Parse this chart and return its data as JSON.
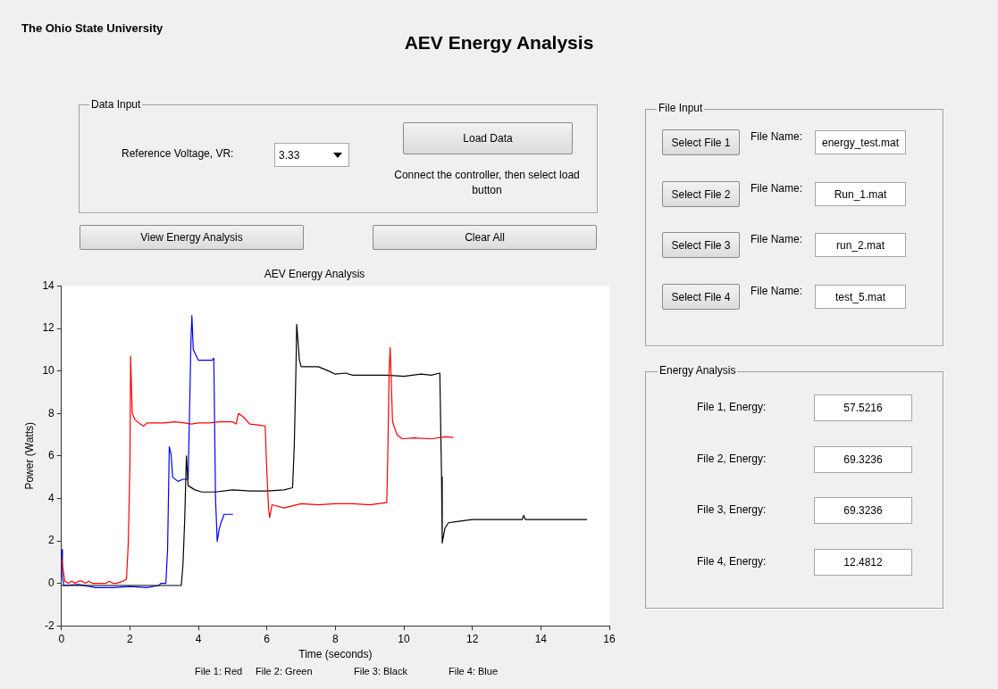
{
  "chart_data": [
    {
      "type": "line",
      "title": "AEV Energy Analysis",
      "xlabel": "Time (seconds)",
      "ylabel": "Power (Watts)",
      "xlim": [
        0,
        16
      ],
      "xticks": [
        0,
        2,
        4,
        6,
        8,
        10,
        12,
        14,
        16
      ],
      "ylim": [
        -2,
        14
      ],
      "yticks": [
        -2,
        0,
        2,
        4,
        6,
        8,
        10,
        12,
        14
      ],
      "series": [
        {
          "color": "#ff0000",
          "x": [
            0,
            0.1,
            0.2,
            0.3,
            0.4,
            0.5,
            0.6,
            0.7,
            0.8,
            0.9,
            1.0,
            1.3,
            1.4,
            1.5,
            1.6,
            1.7,
            1.8,
            1.9,
            1.95,
            2.0,
            2.02,
            2.05,
            2.07,
            2.15,
            2.3,
            2.4,
            2.5,
            2.7,
            3.0,
            3.3,
            3.6,
            3.8,
            4.0,
            4.3,
            4.6,
            5.0,
            5.1,
            5.17,
            5.3,
            5.5,
            5.8,
            5.95,
            6.0,
            6.05,
            6.08,
            6.15,
            6.5,
            7.0,
            7.5,
            8.0,
            8.5,
            9.0,
            9.5,
            9.53,
            9.57,
            9.6,
            9.67,
            9.8,
            9.95,
            10.3,
            10.8,
            11.2,
            11.44
          ],
          "values": [
            1.2,
            0.1,
            0,
            0.1,
            0,
            0.1,
            0.1,
            0,
            0.1,
            0,
            0,
            0,
            0.1,
            0,
            0,
            0.05,
            0.1,
            0.2,
            1.8,
            5.5,
            10.7,
            9,
            8,
            7.7,
            7.5,
            7.4,
            7.55,
            7.55,
            7.55,
            7.6,
            7.55,
            7.5,
            7.55,
            7.55,
            7.6,
            7.6,
            7.5,
            8.0,
            7.85,
            7.5,
            7.45,
            7.4,
            5.2,
            3.5,
            3.1,
            3.7,
            3.55,
            3.75,
            3.7,
            3.75,
            3.75,
            3.7,
            3.8,
            6,
            10,
            11.1,
            7.6,
            7.0,
            6.8,
            6.85,
            6.8,
            6.9,
            6.87
          ]
        },
        {
          "color": "#000000",
          "x": [
            0,
            3.5,
            3.55,
            3.6,
            3.65,
            3.7,
            3.9,
            4.1,
            4.5,
            5.0,
            5.5,
            6.0,
            6.5,
            6.75,
            6.8,
            6.85,
            6.87,
            6.95,
            7.0,
            7.5,
            7.8,
            8.0,
            8.3,
            8.5,
            9.0,
            9.5,
            10.0,
            10.5,
            10.8,
            11.05,
            11.1,
            11.12,
            11.2,
            11.3,
            11.5,
            12.0,
            13.0,
            13.45,
            13.5,
            13.55,
            14.0,
            15.35
          ],
          "values": [
            -0.1,
            -0.1,
            0.9,
            3.0,
            6.0,
            4.6,
            4.4,
            4.3,
            4.3,
            4.4,
            4.35,
            4.35,
            4.4,
            4.5,
            6.5,
            10.2,
            12.2,
            10.5,
            10.2,
            10.2,
            10.0,
            9.85,
            9.9,
            9.8,
            9.8,
            9.8,
            9.75,
            9.85,
            9.8,
            9.9,
            5.0,
            1.9,
            2.6,
            2.85,
            2.9,
            3.0,
            3.0,
            3.0,
            3.2,
            3.0,
            3.0,
            3.0
          ]
        },
        {
          "color": "#0000ff",
          "x": [
            0.02,
            0.03,
            0.07,
            0.1,
            0.5,
            1.0,
            1.5,
            2.0,
            2.5,
            2.85,
            2.9,
            3.05,
            3.1,
            3.15,
            3.2,
            3.25,
            3.4,
            3.55,
            3.7,
            3.75,
            3.78,
            3.81,
            3.85,
            4.0,
            4.2,
            4.4,
            4.45,
            4.5,
            4.55,
            4.6,
            4.65,
            4.75,
            5.01
          ],
          "values": [
            1.6,
            0.3,
            -0.1,
            -0.1,
            -0.05,
            -0.2,
            -0.2,
            -0.15,
            -0.2,
            -0.1,
            0,
            0,
            1.6,
            6.43,
            6.1,
            5.0,
            4.8,
            4.9,
            4.9,
            8.7,
            11.3,
            12.6,
            11.0,
            10.5,
            10.5,
            10.5,
            10.6,
            4.0,
            1.97,
            2.5,
            2.8,
            3.25,
            3.25
          ]
        }
      ],
      "annotations": [
        "File 1: Red",
        "File 2: Green",
        "File 3: Black",
        "File 4: Blue"
      ]
    },
    {
      "type": "other",
      "title": "AEV Energy Analysis",
      "annotations": [
        "The Ohio State University",
        "Data Input",
        "Reference Voltage, VR:",
        "3.33",
        "Load Data",
        "Connect the controller, then select load button",
        "View Energy Analysis",
        "Clear All",
        "File Input",
        "Select File 1",
        "File Name:",
        "energy_test.mat",
        "Select File 2",
        "File Name:",
        "Run_1.mat",
        "Select File 3",
        "File Name:",
        "run_2.mat",
        "Select File 4",
        "File Name:",
        "test_5.mat",
        "Energy Analysis",
        "File 1, Energy:",
        "57.5216",
        "File 2, Energy:",
        "69.3236",
        "File 3, Energy:",
        "69.3236",
        "File 4, Energy:",
        "12.4812"
      ]
    }
  ]
}
